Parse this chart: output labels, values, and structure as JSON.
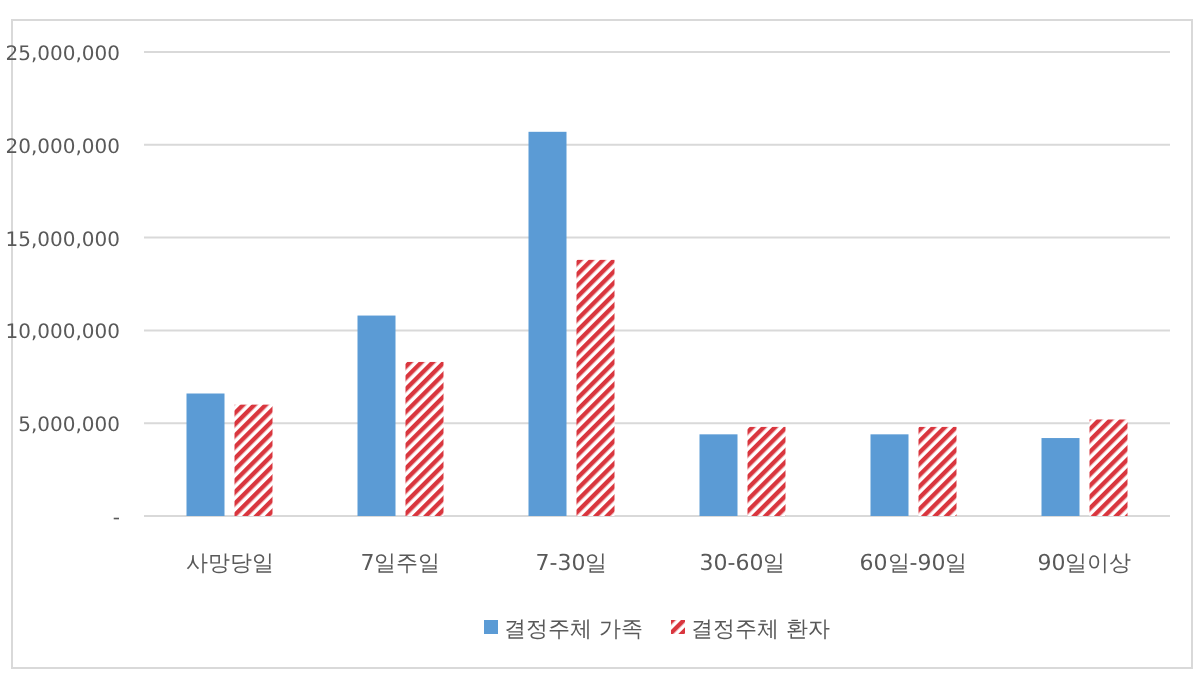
{
  "chart_data": {
    "type": "bar",
    "categories": [
      "사망당일",
      "7일주일",
      "7-30일",
      "30-60일",
      "60일-90일",
      "90일이상"
    ],
    "series": [
      {
        "name": "결정주체 가족",
        "color": "#5b9bd5",
        "values": [
          6600000,
          10800000,
          20700000,
          4400000,
          4400000,
          4200000
        ]
      },
      {
        "name": "결정주체 환자",
        "color": "#d9363e",
        "values": [
          6000000,
          8300000,
          13800000,
          4800000,
          4800000,
          5200000
        ]
      }
    ],
    "ylim": [
      0,
      25000000
    ],
    "yticks": [
      {
        "value": 0,
        "label": "-"
      },
      {
        "value": 5000000,
        "label": "5,000,000"
      },
      {
        "value": 10000000,
        "label": "10,000,000"
      },
      {
        "value": 15000000,
        "label": "15,000,000"
      },
      {
        "value": 20000000,
        "label": "20,000,000"
      },
      {
        "value": 25000000,
        "label": "25,000,000"
      }
    ],
    "grid": "y",
    "legend": "bottom"
  }
}
